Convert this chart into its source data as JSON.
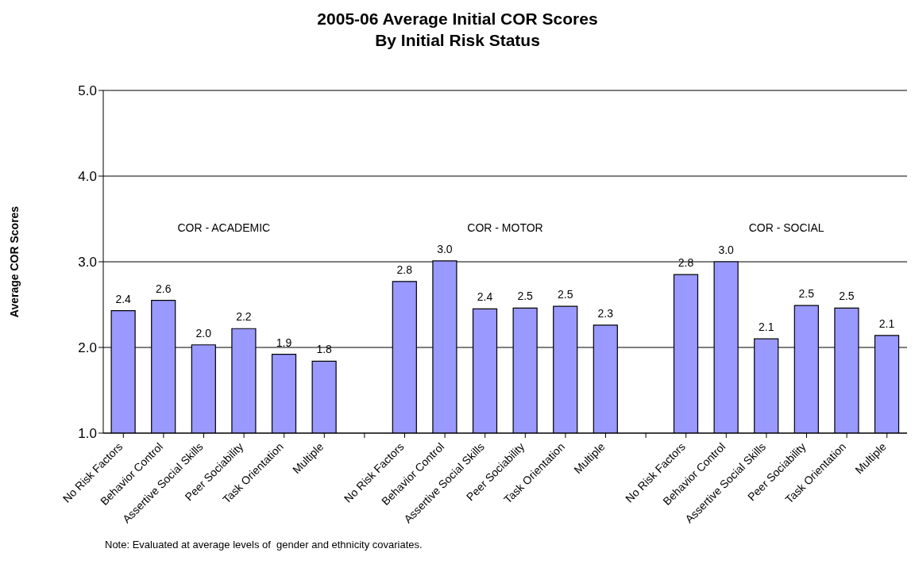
{
  "chart_data": {
    "type": "bar",
    "title": "2005-06 Average Initial COR Scores",
    "subtitle": "By Initial Risk Status",
    "ylabel": "Average COR Scores",
    "categories": [
      "No Risk Factors",
      "Behavior Control",
      "Assertive Social Skills",
      "Peer Sociability",
      "Task Orientation",
      "Multiple",
      null,
      "No Risk Factors",
      "Behavior Control",
      "Assertive Social Skills",
      "Peer Sociability",
      "Task Orientation",
      "Multiple",
      null,
      "No Risk Factors",
      "Behavior Control",
      "Assertive Social Skills",
      "Peer Sociability",
      "Task Orientation",
      "Multiple"
    ],
    "values": [
      2.43,
      2.55,
      2.03,
      2.22,
      1.92,
      1.84,
      null,
      2.77,
      3.01,
      2.45,
      2.46,
      2.48,
      2.26,
      null,
      2.85,
      3.0,
      2.1,
      2.49,
      2.46,
      2.14
    ],
    "value_labels": [
      "2.4",
      "2.6",
      "2.0",
      "2.2",
      "1.9",
      "1.8",
      null,
      "2.8",
      "3.0",
      "2.4",
      "2.5",
      "2.5",
      "2.3",
      null,
      "2.8",
      "3.0",
      "2.1",
      "2.5",
      "2.5",
      "2.1"
    ],
    "color": "#9999ff",
    "ylim": [
      1,
      5
    ],
    "yticks": [
      {
        "value": 1,
        "label": "1.0"
      },
      {
        "value": 2,
        "label": "2.0"
      },
      {
        "value": 3,
        "label": "3.0"
      },
      {
        "value": 4,
        "label": "4.0"
      },
      {
        "value": 5,
        "label": "5.0"
      }
    ],
    "grid": "y",
    "legend": false,
    "annotations": [
      "COR - ACADEMIC",
      "COR - MOTOR",
      "COR - SOCIAL",
      "Note: Evaluated at average levels of  gender and ethnicity covariates."
    ]
  }
}
